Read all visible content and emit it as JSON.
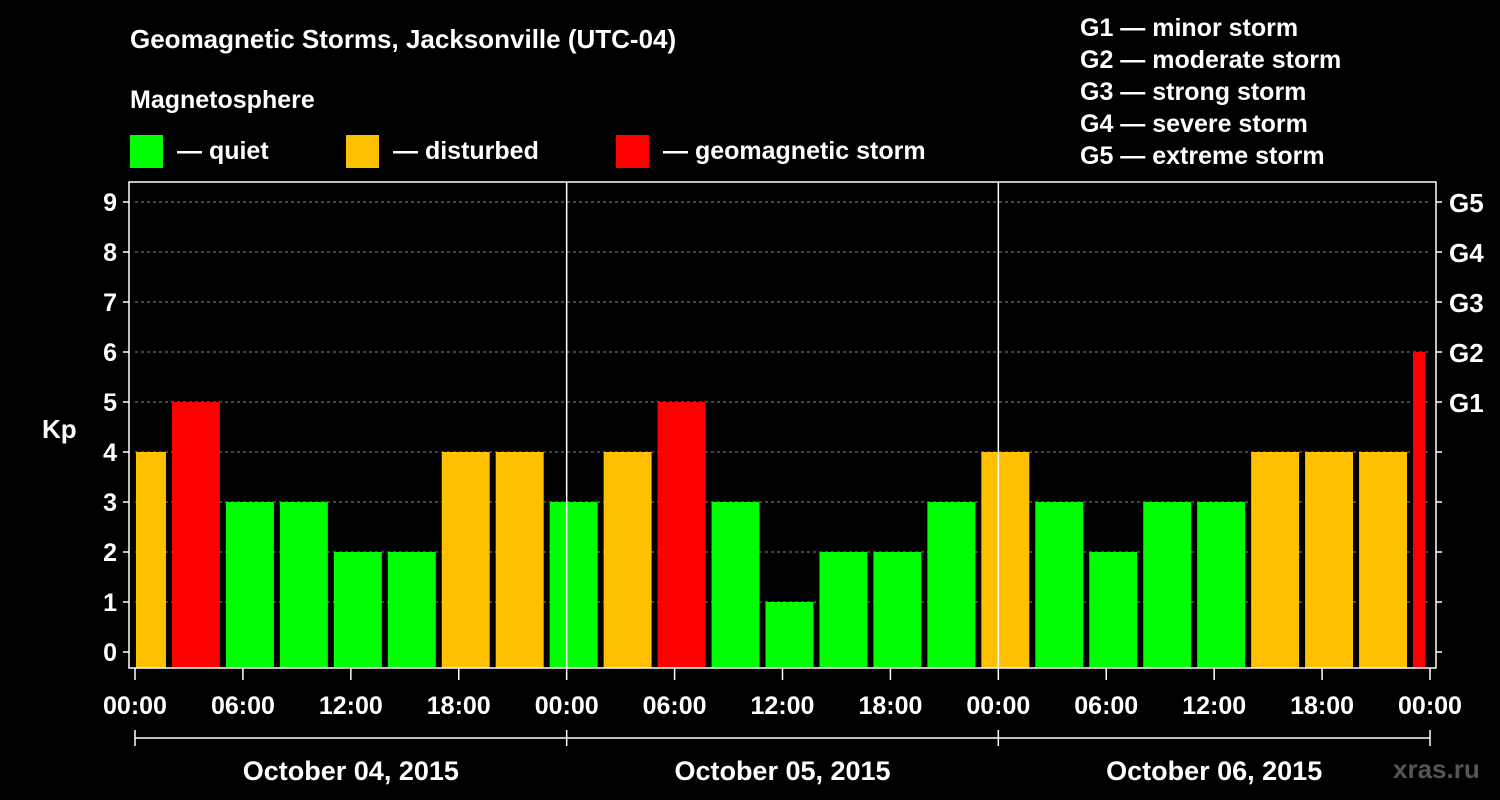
{
  "title": "Geomagnetic Storms, Jacksonville (UTC-04)",
  "magnetosphere_label": "Magnetosphere",
  "legend": [
    {
      "label": "— quiet",
      "color": "#00ff00"
    },
    {
      "label": "— disturbed",
      "color": "#ffc000"
    },
    {
      "label": "— geomagnetic storm",
      "color": "#ff0000"
    }
  ],
  "g_scale_legend": [
    "G1 — minor storm",
    "G2 — moderate storm",
    "G3 — strong storm",
    "G4 — severe storm",
    "G5 — extreme storm"
  ],
  "watermark": "xras.ru",
  "colors": {
    "quiet": "#00ff00",
    "disturbed": "#ffc000",
    "storm": "#ff0000",
    "grid": "#888888",
    "axis": "#ffffff"
  },
  "chart_data": {
    "type": "bar",
    "title": "Geomagnetic Storms, Jacksonville (UTC-04)",
    "ylabel": "Kp",
    "ylim": [
      0,
      9
    ],
    "yticks": [
      "0",
      "1",
      "2",
      "3",
      "4",
      "5",
      "6",
      "7",
      "8",
      "9"
    ],
    "right_ticks": [
      {
        "kp": 5,
        "label": "G1"
      },
      {
        "kp": 6,
        "label": "G2"
      },
      {
        "kp": 7,
        "label": "G3"
      },
      {
        "kp": 8,
        "label": "G4"
      },
      {
        "kp": 9,
        "label": "G5"
      }
    ],
    "x_range_hours": [
      0,
      72
    ],
    "x_ticks": [
      {
        "hour": 0,
        "label": "00:00"
      },
      {
        "hour": 6,
        "label": "06:00"
      },
      {
        "hour": 12,
        "label": "12:00"
      },
      {
        "hour": 18,
        "label": "18:00"
      },
      {
        "hour": 24,
        "label": "00:00"
      },
      {
        "hour": 30,
        "label": "06:00"
      },
      {
        "hour": 36,
        "label": "12:00"
      },
      {
        "hour": 42,
        "label": "18:00"
      },
      {
        "hour": 48,
        "label": "00:00"
      },
      {
        "hour": 54,
        "label": "06:00"
      },
      {
        "hour": 60,
        "label": "12:00"
      },
      {
        "hour": 66,
        "label": "18:00"
      },
      {
        "hour": 72,
        "label": "00:00"
      }
    ],
    "days": [
      {
        "label": "October 04, 2015",
        "start": 0,
        "end": 24
      },
      {
        "label": "October 05, 2015",
        "start": 24,
        "end": 48
      },
      {
        "label": "October 06, 2015",
        "start": 48,
        "end": 72
      }
    ],
    "bars": [
      {
        "start": 0,
        "end": 2,
        "kp": 4
      },
      {
        "start": 2,
        "end": 5,
        "kp": 5
      },
      {
        "start": 5,
        "end": 8,
        "kp": 3
      },
      {
        "start": 8,
        "end": 11,
        "kp": 3
      },
      {
        "start": 11,
        "end": 14,
        "kp": 2
      },
      {
        "start": 14,
        "end": 17,
        "kp": 2
      },
      {
        "start": 17,
        "end": 20,
        "kp": 4
      },
      {
        "start": 20,
        "end": 23,
        "kp": 4
      },
      {
        "start": 23,
        "end": 26,
        "kp": 3
      },
      {
        "start": 26,
        "end": 29,
        "kp": 4
      },
      {
        "start": 29,
        "end": 32,
        "kp": 5
      },
      {
        "start": 32,
        "end": 35,
        "kp": 3
      },
      {
        "start": 35,
        "end": 38,
        "kp": 1
      },
      {
        "start": 38,
        "end": 41,
        "kp": 2
      },
      {
        "start": 41,
        "end": 44,
        "kp": 2
      },
      {
        "start": 44,
        "end": 47,
        "kp": 3
      },
      {
        "start": 47,
        "end": 50,
        "kp": 4
      },
      {
        "start": 50,
        "end": 53,
        "kp": 3
      },
      {
        "start": 53,
        "end": 56,
        "kp": 2
      },
      {
        "start": 56,
        "end": 59,
        "kp": 3
      },
      {
        "start": 59,
        "end": 62,
        "kp": 3
      },
      {
        "start": 62,
        "end": 65,
        "kp": 4
      },
      {
        "start": 65,
        "end": 68,
        "kp": 4
      },
      {
        "start": 68,
        "end": 71,
        "kp": 4
      },
      {
        "start": 71,
        "end": 72,
        "kp": 6
      }
    ]
  }
}
